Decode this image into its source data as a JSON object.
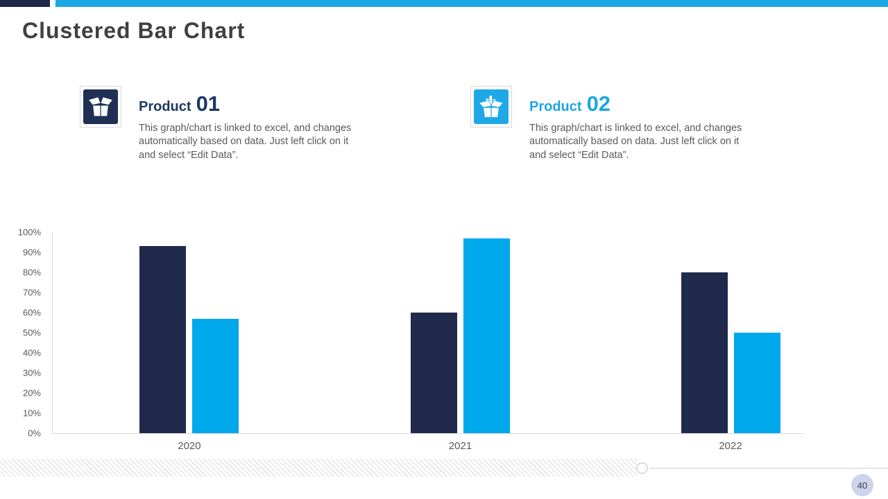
{
  "slide": {
    "title": "Clustered Bar Chart",
    "page_number": "40"
  },
  "colors": {
    "accent_navy": "#1e2749",
    "accent_cyan": "#18a8e8",
    "bar_navy": "#1f2a4d",
    "bar_cyan": "#00a8ec",
    "product1_heading": "#1f3864",
    "product2_heading": "#1ba7e2",
    "title_text": "#404040",
    "body_text": "#595959",
    "axis_line": "#d9d9d9",
    "badge_bg": "#cdd3eb"
  },
  "products": [
    {
      "label": "Product",
      "number": "01",
      "icon": "open-box-icon",
      "description": "This graph/chart is linked to excel, and changes automatically based on data. Just left click on it and select “Edit Data”."
    },
    {
      "label": "Product",
      "number": "02",
      "icon": "open-box-chart-icon",
      "description": "This graph/chart is linked to excel, and changes automatically based on data. Just left click on it and select “Edit Data”."
    }
  ],
  "chart_data": {
    "type": "bar",
    "title": "Clustered Bar Chart",
    "categories": [
      "2020",
      "2021",
      "2022"
    ],
    "series": [
      {
        "name": "Product 01",
        "color": "#1f2a4d",
        "values": [
          93,
          60,
          80
        ]
      },
      {
        "name": "Product 02",
        "color": "#00a8ec",
        "values": [
          57,
          97,
          50
        ]
      }
    ],
    "xlabel": "",
    "ylabel": "",
    "ylim": [
      0,
      100
    ],
    "ytick_step": 10,
    "ytick_format": "percent",
    "grid": false,
    "legend": "none"
  }
}
